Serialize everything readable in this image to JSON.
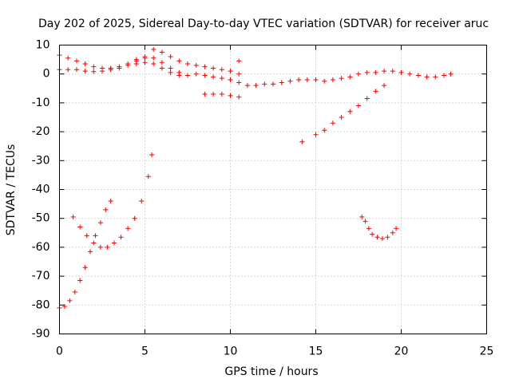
{
  "chart_data": {
    "type": "scatter",
    "title": "Day 202 of 2025, Sidereal Day-to-day VTEC variation (SDTVAR) for receiver aruc",
    "xlabel": "GPS time / hours",
    "ylabel": "SDTVAR / TECUs",
    "xlim": [
      0,
      25
    ],
    "ylim": [
      -90,
      10
    ],
    "xticks": [
      0,
      5,
      10,
      15,
      20,
      25
    ],
    "yticks": [
      -90,
      -80,
      -70,
      -60,
      -50,
      -40,
      -30,
      -20,
      -10,
      0,
      10
    ],
    "grid": true,
    "marker": "plus",
    "color": "#ff0000",
    "series": [
      {
        "name": "trace-1",
        "x": [
          0.0,
          0.5,
          1.0,
          1.5,
          2.0,
          2.5,
          3.0,
          3.5,
          4.0,
          4.5,
          5.0,
          5.5,
          6.0,
          6.5,
          7.0,
          7.5,
          8.0,
          8.5,
          9.0,
          9.5,
          10.0,
          10.5,
          11.0,
          11.5,
          12.0,
          12.5,
          13.0,
          13.5,
          14.0,
          14.5,
          15.0,
          15.5,
          16.0,
          16.5,
          17.0,
          17.5,
          18.0,
          18.5,
          19.0,
          19.5,
          20.0,
          20.5,
          21.0,
          21.5,
          22.0,
          22.5,
          22.9
        ],
        "y": [
          1.5,
          1.5,
          1.5,
          1.0,
          0.8,
          1.0,
          1.5,
          2.0,
          3.0,
          3.5,
          4.0,
          3.5,
          2.0,
          0.5,
          -0.5,
          -0.5,
          0.0,
          -0.5,
          -1.0,
          -1.5,
          -2.0,
          -3.0,
          -4.0,
          -4.0,
          -3.5,
          -3.5,
          -3.0,
          -2.5,
          -2.0,
          -2.0,
          -2.0,
          -2.5,
          -2.0,
          -1.5,
          -1.0,
          0.0,
          0.5,
          0.5,
          1.0,
          1.0,
          0.5,
          0.0,
          -0.5,
          -1.0,
          -1.0,
          -0.5,
          0.0
        ]
      },
      {
        "name": "trace-2",
        "x": [
          0.0,
          0.5,
          1.0,
          1.5,
          2.0,
          2.5,
          3.0,
          3.5,
          4.0,
          4.5,
          5.0
        ],
        "y": [
          6.5,
          5.5,
          4.5,
          3.5,
          2.5,
          2.0,
          2.0,
          2.5,
          3.5,
          5.0,
          6.0
        ]
      },
      {
        "name": "trace-3",
        "x": [
          5.5,
          6.0,
          6.5,
          7.0,
          7.5,
          8.0,
          8.5,
          9.0,
          9.5,
          10.0,
          10.5
        ],
        "y": [
          8.5,
          7.5,
          6.0,
          4.5,
          3.5,
          3.0,
          2.5,
          2.0,
          1.5,
          1.0,
          0.0
        ]
      },
      {
        "name": "trace-4",
        "x": [
          8.5,
          9.0,
          9.5,
          10.0,
          10.5
        ],
        "y": [
          -7.0,
          -7.0,
          -7.0,
          -7.5,
          -8.0
        ]
      },
      {
        "name": "trace-5",
        "x": [
          4.5,
          5.0,
          5.5,
          6.0,
          6.5,
          7.0,
          7.5
        ],
        "y": [
          4.5,
          5.5,
          5.5,
          4.0,
          2.0,
          0.5,
          -0.5
        ]
      },
      {
        "name": "trace-6",
        "x": [
          10.5
        ],
        "y": [
          4.5
        ]
      },
      {
        "name": "trace-7",
        "x": [
          0.0,
          0.3,
          0.6,
          0.9,
          1.2,
          1.5,
          1.8,
          2.1,
          2.4,
          2.7,
          3.0
        ],
        "y": [
          -81.0,
          -80.5,
          -78.5,
          -75.5,
          -71.5,
          -67.0,
          -61.5,
          -56.0,
          -51.5,
          -47.0,
          -44.0
        ]
      },
      {
        "name": "trace-8",
        "x": [
          0.8,
          1.2,
          1.6,
          2.0,
          2.4,
          2.8,
          3.2,
          3.6,
          4.0,
          4.4,
          4.8,
          5.2,
          5.4
        ],
        "y": [
          -49.5,
          -53.0,
          -56.0,
          -58.5,
          -60.0,
          -60.0,
          -58.5,
          -56.5,
          -53.5,
          -50.0,
          -44.0,
          -35.5,
          -28.0
        ]
      },
      {
        "name": "trace-9",
        "x": [
          14.2,
          15.0,
          15.5,
          16.0,
          16.5,
          17.0,
          17.5,
          18.0,
          18.5,
          19.0
        ],
        "y": [
          -23.5,
          -21.0,
          -19.5,
          -17.0,
          -15.0,
          -13.0,
          -11.0,
          -8.5,
          -6.0,
          -4.0
        ]
      },
      {
        "name": "trace-10",
        "x": [
          17.7,
          17.9,
          18.1,
          18.3,
          18.6,
          18.9,
          19.2,
          19.5,
          19.7
        ],
        "y": [
          -49.5,
          -51.0,
          -53.5,
          -55.5,
          -56.5,
          -57.0,
          -56.5,
          -55.0,
          -53.5
        ]
      }
    ]
  }
}
